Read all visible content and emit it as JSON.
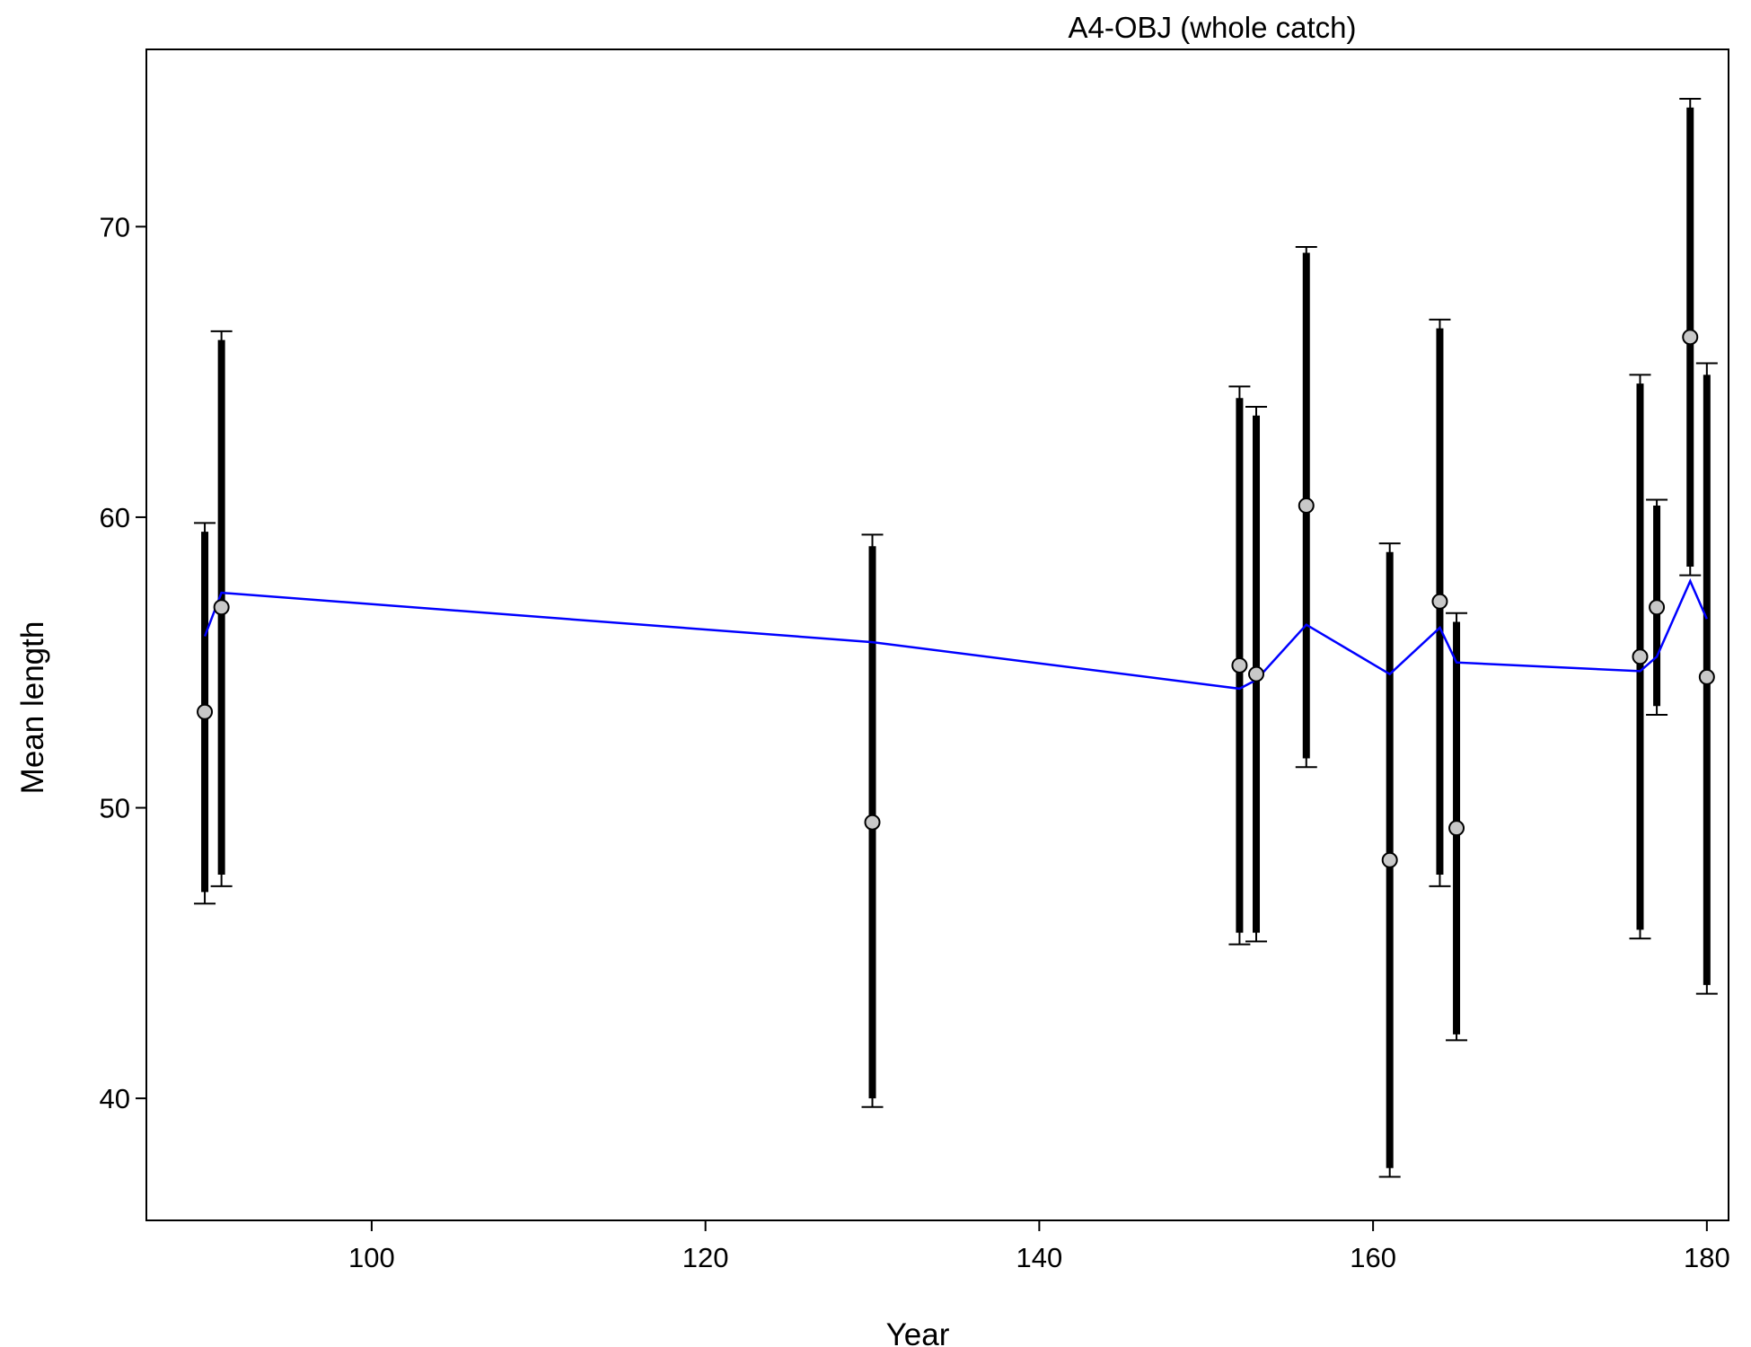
{
  "chart_data": {
    "type": "line",
    "title": "A4-OBJ (whole catch)",
    "xlabel": "Year",
    "ylabel": "Mean length",
    "xlim": [
      86.5,
      181.3
    ],
    "ylim": [
      35.8,
      76.1
    ],
    "xticks": [
      100,
      120,
      140,
      160,
      180
    ],
    "yticks": [
      40,
      50,
      60,
      70
    ],
    "xtick_labels": [
      "100",
      "120",
      "140",
      "160",
      "180"
    ],
    "ytick_labels": [
      "40",
      "50",
      "60",
      "70"
    ],
    "grid": false,
    "colors": {
      "fit_line": "#0000ff",
      "point_fill": "#c8c8c8",
      "bars": "#000000"
    },
    "series": [
      {
        "name": "",
        "kind": "observed",
        "x": [
          90,
          91,
          130,
          152,
          153,
          156,
          161,
          164,
          165,
          176,
          177,
          179,
          180
        ],
        "values": [
          53.3,
          56.9,
          49.5,
          54.9,
          54.6,
          60.4,
          48.2,
          57.1,
          49.3,
          55.2,
          56.9,
          66.2,
          54.5
        ],
        "inner_lower": [
          47.1,
          47.7,
          40.0,
          45.7,
          45.7,
          51.7,
          37.6,
          47.7,
          42.2,
          45.8,
          53.5,
          58.3,
          43.9
        ],
        "inner_upper": [
          59.5,
          66.1,
          59.0,
          64.1,
          63.5,
          69.1,
          58.8,
          66.5,
          56.4,
          64.6,
          60.4,
          74.1,
          64.9
        ],
        "outer_lower": [
          46.7,
          47.3,
          39.7,
          45.3,
          45.4,
          51.4,
          37.3,
          47.3,
          42.0,
          45.5,
          53.2,
          58.0,
          43.6
        ],
        "outer_upper": [
          59.8,
          66.4,
          59.4,
          64.5,
          63.8,
          69.3,
          59.1,
          66.8,
          56.7,
          64.9,
          60.6,
          74.4,
          65.3
        ]
      },
      {
        "name": "",
        "kind": "expected",
        "x": [
          90,
          91,
          130,
          152,
          153,
          156,
          161,
          164,
          165,
          176,
          177,
          179,
          180
        ],
        "values": [
          55.9,
          57.4,
          55.7,
          54.1,
          54.4,
          56.3,
          54.6,
          56.2,
          55.0,
          54.7,
          55.2,
          57.8,
          56.5
        ]
      }
    ]
  }
}
